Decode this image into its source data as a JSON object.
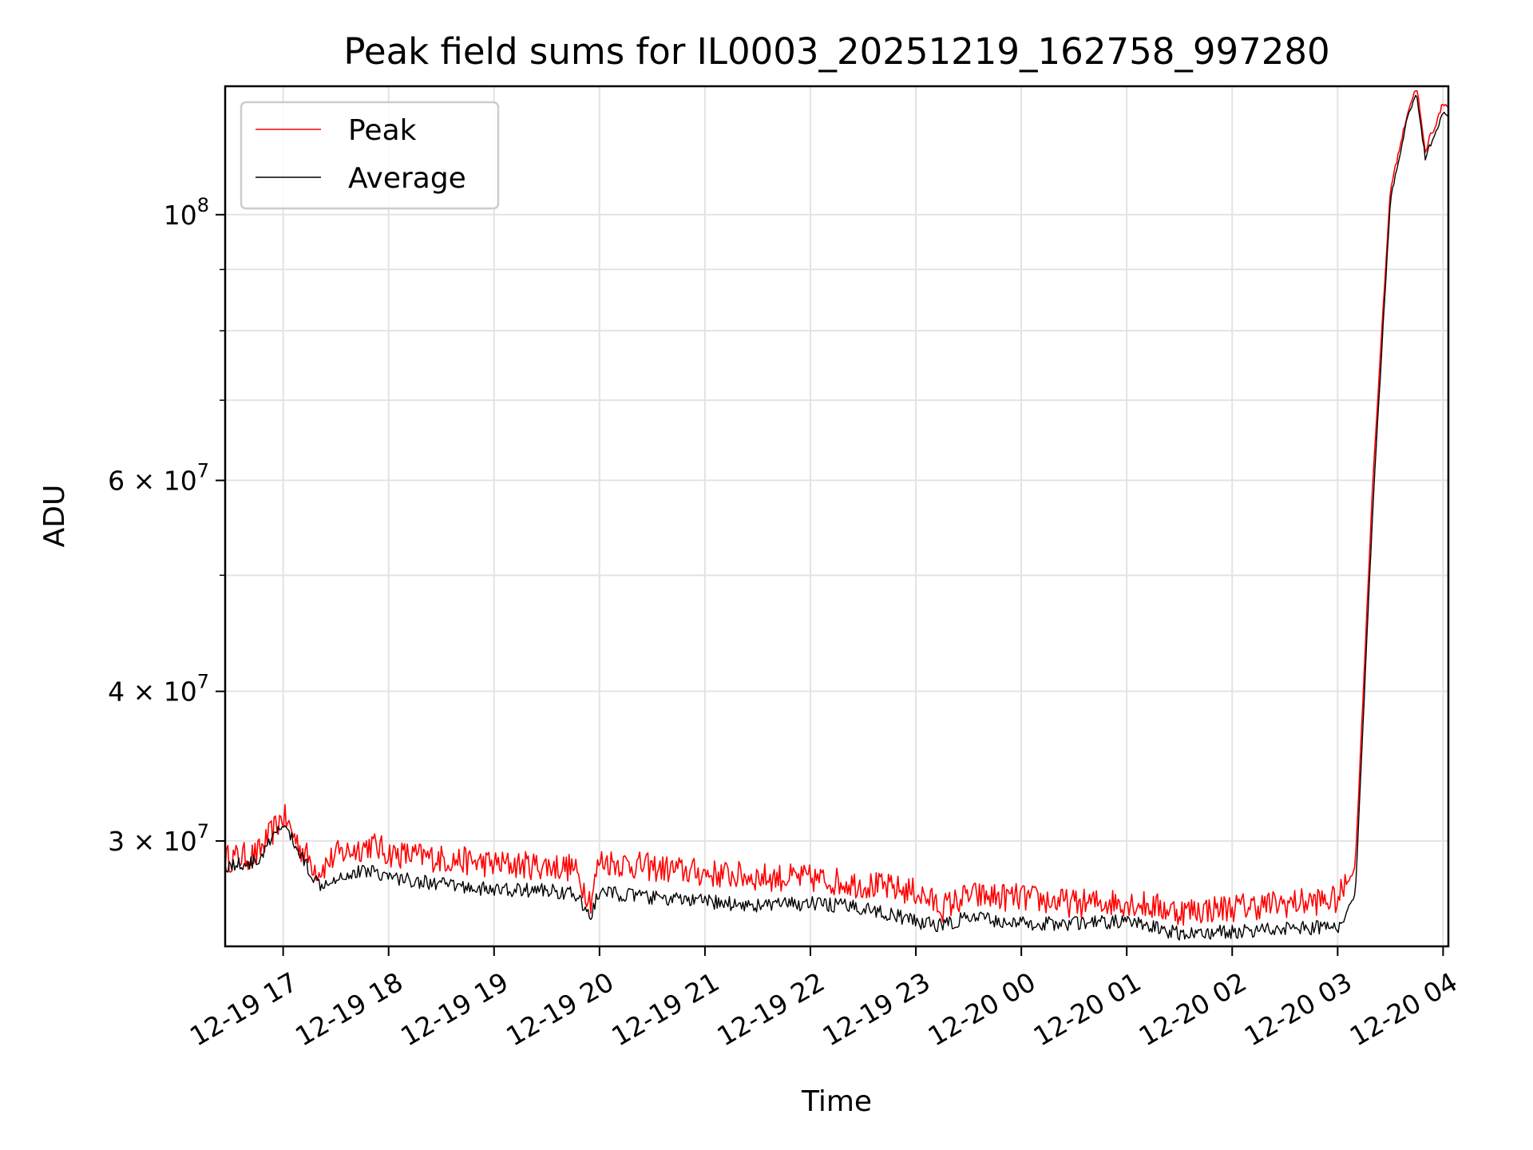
{
  "chart_data": {
    "type": "line",
    "title": "Peak field sums for IL0003_20251219_162758_997280",
    "xlabel": "Time",
    "ylabel": "ADU",
    "y_scale": "log",
    "xlim": [
      "2025-12-19 16:27",
      "2025-12-20 04:03"
    ],
    "ylim": [
      24500000,
      128000000
    ],
    "grid": true,
    "legend_position": "top-left",
    "x_ticks": [
      "12-19 17",
      "12-19 18",
      "12-19 19",
      "12-19 20",
      "12-19 21",
      "12-19 22",
      "12-19 23",
      "12-20 00",
      "12-20 01",
      "12-20 02",
      "12-20 03",
      "12-20 04"
    ],
    "y_ticks": [
      {
        "value": 100000000,
        "base": "10",
        "exp": "8"
      },
      {
        "value": 60000000,
        "base": "6 × 10",
        "exp": "7"
      },
      {
        "value": 40000000,
        "base": "4 × 10",
        "exp": "7"
      },
      {
        "value": 30000000,
        "base": "3 × 10",
        "exp": "7"
      }
    ],
    "y_minor_ticks": [
      50000000,
      70000000,
      80000000,
      90000000
    ],
    "series": [
      {
        "name": "Peak",
        "color": "#ff0000",
        "x": [
          "2025-12-19 16:27",
          "2025-12-19 16:45",
          "2025-12-19 17:00",
          "2025-12-19 17:10",
          "2025-12-19 17:20",
          "2025-12-19 17:30",
          "2025-12-19 17:50",
          "2025-12-19 18:00",
          "2025-12-19 18:30",
          "2025-12-19 19:00",
          "2025-12-19 19:30",
          "2025-12-19 19:45",
          "2025-12-19 19:55",
          "2025-12-19 20:00",
          "2025-12-19 20:30",
          "2025-12-19 21:00",
          "2025-12-19 21:30",
          "2025-12-19 22:00",
          "2025-12-19 22:30",
          "2025-12-19 23:00",
          "2025-12-19 23:15",
          "2025-12-19 23:30",
          "2025-12-20 00:00",
          "2025-12-20 00:30",
          "2025-12-20 01:00",
          "2025-12-20 01:30",
          "2025-12-20 02:00",
          "2025-12-20 02:30",
          "2025-12-20 03:00",
          "2025-12-20 03:10",
          "2025-12-20 03:20",
          "2025-12-20 03:30",
          "2025-12-20 03:40",
          "2025-12-20 03:45",
          "2025-12-20 03:50",
          "2025-12-20 03:52",
          "2025-12-20 03:55",
          "2025-12-20 04:00",
          "2025-12-20 04:03"
        ],
        "y": [
          29000000,
          29200000,
          31500000,
          29600000,
          28300000,
          29200000,
          29800000,
          29300000,
          29000000,
          28700000,
          28600000,
          28500000,
          26800000,
          28900000,
          28500000,
          28200000,
          28000000,
          27900000,
          27600000,
          27200000,
          26400000,
          27000000,
          26900000,
          26600000,
          26700000,
          26200000,
          26400000,
          26600000,
          26800000,
          28500000,
          60000000,
          105000000,
          122000000,
          128000000,
          112000000,
          116000000,
          118000000,
          124000000,
          123000000
        ]
      },
      {
        "name": "Average",
        "color": "#000000",
        "x": [
          "2025-12-19 16:27",
          "2025-12-19 16:45",
          "2025-12-19 17:00",
          "2025-12-19 17:10",
          "2025-12-19 17:20",
          "2025-12-19 17:30",
          "2025-12-19 17:50",
          "2025-12-19 18:00",
          "2025-12-19 18:30",
          "2025-12-19 19:00",
          "2025-12-19 19:30",
          "2025-12-19 19:45",
          "2025-12-19 19:55",
          "2025-12-19 20:00",
          "2025-12-19 20:30",
          "2025-12-19 21:00",
          "2025-12-19 21:30",
          "2025-12-19 22:00",
          "2025-12-19 22:30",
          "2025-12-19 23:00",
          "2025-12-19 23:15",
          "2025-12-19 23:30",
          "2025-12-20 00:00",
          "2025-12-20 00:30",
          "2025-12-20 01:00",
          "2025-12-20 01:30",
          "2025-12-20 02:00",
          "2025-12-20 02:30",
          "2025-12-20 03:00",
          "2025-12-20 03:10",
          "2025-12-20 03:20",
          "2025-12-20 03:30",
          "2025-12-20 03:40",
          "2025-12-20 03:45",
          "2025-12-20 03:50",
          "2025-12-20 03:52",
          "2025-12-20 03:55",
          "2025-12-20 04:00",
          "2025-12-20 04:03"
        ],
        "y": [
          28600000,
          28800000,
          31000000,
          29200000,
          27600000,
          28000000,
          28400000,
          28000000,
          27600000,
          27300000,
          27300000,
          27100000,
          26000000,
          27200000,
          26900000,
          26700000,
          26500000,
          26600000,
          26400000,
          25700000,
          25500000,
          25900000,
          25600000,
          25600000,
          25700000,
          25100000,
          25200000,
          25400000,
          25400000,
          27000000,
          57000000,
          103000000,
          121000000,
          126000000,
          111000000,
          114000000,
          116000000,
          122000000,
          121000000
        ]
      }
    ]
  }
}
